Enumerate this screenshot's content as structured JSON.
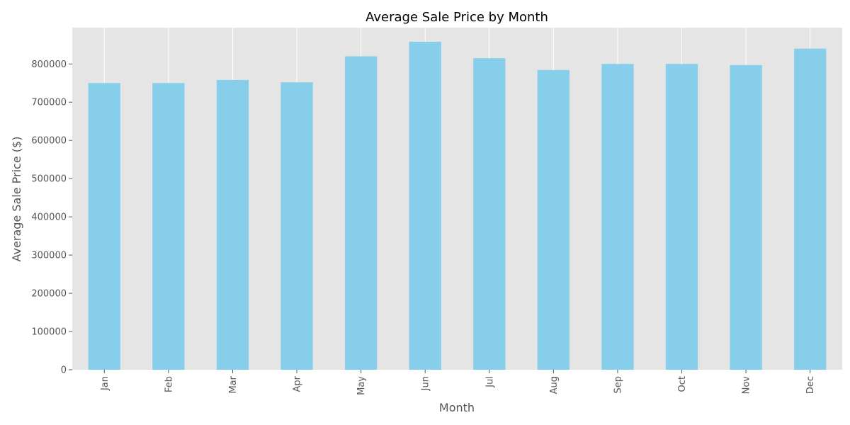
{
  "chart_data": {
    "type": "bar",
    "title": "Average Sale Price by Month",
    "xlabel": "Month",
    "ylabel": "Average Sale Price ($)",
    "categories": [
      "Jan",
      "Feb",
      "Mar",
      "Apr",
      "May",
      "Jun",
      "Jul",
      "Aug",
      "Sep",
      "Oct",
      "Nov",
      "Dec"
    ],
    "values": [
      750000,
      750000,
      758000,
      752000,
      820000,
      858000,
      815000,
      784000,
      800000,
      800000,
      797000,
      840000
    ],
    "ylim": [
      0,
      895000
    ],
    "yticks": [
      "0",
      "100000",
      "200000",
      "300000",
      "400000",
      "500000",
      "600000",
      "700000",
      "800000"
    ],
    "ytick_values": [
      0,
      100000,
      200000,
      300000,
      400000,
      500000,
      600000,
      700000,
      800000
    ],
    "grid": true,
    "bar_color": "#87ceeb",
    "plot_background": "#e5e5e5",
    "grid_color": "#ffffff"
  }
}
